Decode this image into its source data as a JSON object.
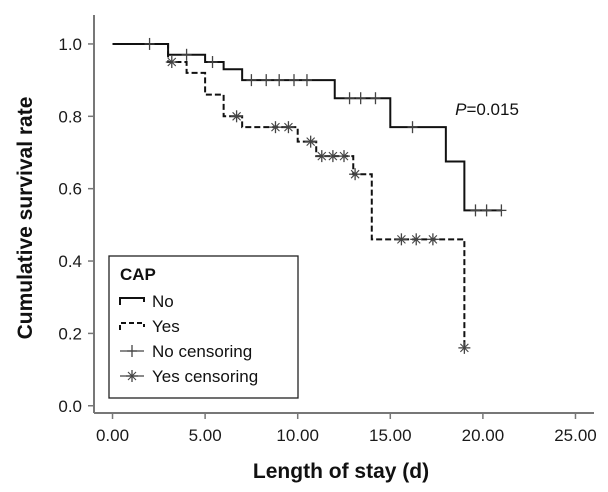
{
  "chart_data": {
    "type": "line",
    "title": "",
    "xlabel": "Length of stay (d)",
    "ylabel": "Cumulative survival rate",
    "xlim": [
      -1,
      26
    ],
    "ylim": [
      -0.02,
      1.08
    ],
    "x_ticks": [
      0,
      5,
      10,
      15,
      20,
      25
    ],
    "x_tick_labels": [
      "0.00",
      "5.00",
      "10.00",
      "15.00",
      "20.00",
      "25.00"
    ],
    "y_ticks": [
      0,
      0.2,
      0.4,
      0.6,
      0.8,
      1.0
    ],
    "y_tick_labels": [
      "0.0",
      "0.2",
      "0.4",
      "0.6",
      "0.8",
      "1.0"
    ],
    "grid": false,
    "annotation": {
      "italic": "P",
      "text": "=0.015",
      "x": 18.5,
      "y": 0.82
    },
    "legend": {
      "title": "CAP",
      "position": "bottom-left",
      "entries": [
        {
          "label": "No",
          "kind": "solid-step"
        },
        {
          "label": "Yes",
          "kind": "dashed-step"
        },
        {
          "label": "No censoring",
          "kind": "plus-mark"
        },
        {
          "label": "Yes censoring",
          "kind": "star-mark"
        }
      ]
    },
    "series": [
      {
        "name": "No",
        "style": "solid",
        "steps": [
          [
            0,
            1.0
          ],
          [
            3,
            0.97
          ],
          [
            5,
            0.95
          ],
          [
            6,
            0.93
          ],
          [
            7,
            0.9
          ],
          [
            12,
            0.85
          ],
          [
            15,
            0.77
          ],
          [
            18,
            0.675
          ],
          [
            19,
            0.54
          ],
          [
            21,
            0.54
          ]
        ],
        "censored": [
          [
            2,
            1.0
          ],
          [
            4,
            0.97
          ],
          [
            5.4,
            0.95
          ],
          [
            7.5,
            0.9
          ],
          [
            8.3,
            0.9
          ],
          [
            9,
            0.9
          ],
          [
            9.8,
            0.9
          ],
          [
            10.5,
            0.9
          ],
          [
            12.8,
            0.85
          ],
          [
            13.4,
            0.85
          ],
          [
            14.2,
            0.85
          ],
          [
            16.2,
            0.77
          ],
          [
            19.6,
            0.54
          ],
          [
            20.2,
            0.54
          ],
          [
            21,
            0.54
          ]
        ]
      },
      {
        "name": "Yes",
        "style": "dashed",
        "steps": [
          [
            0,
            1.0
          ],
          [
            3,
            0.95
          ],
          [
            4,
            0.92
          ],
          [
            5,
            0.86
          ],
          [
            6,
            0.8
          ],
          [
            7,
            0.77
          ],
          [
            10,
            0.73
          ],
          [
            11,
            0.69
          ],
          [
            13,
            0.64
          ],
          [
            14,
            0.46
          ],
          [
            19,
            0.16
          ]
        ],
        "censored": [
          [
            3.2,
            0.95
          ],
          [
            6.7,
            0.8
          ],
          [
            8.8,
            0.77
          ],
          [
            9.5,
            0.77
          ],
          [
            10.7,
            0.73
          ],
          [
            11.3,
            0.69
          ],
          [
            11.9,
            0.69
          ],
          [
            12.5,
            0.69
          ],
          [
            13.1,
            0.64
          ],
          [
            15.6,
            0.46
          ],
          [
            16.4,
            0.46
          ],
          [
            17.3,
            0.46
          ],
          [
            19,
            0.16
          ]
        ]
      }
    ]
  }
}
